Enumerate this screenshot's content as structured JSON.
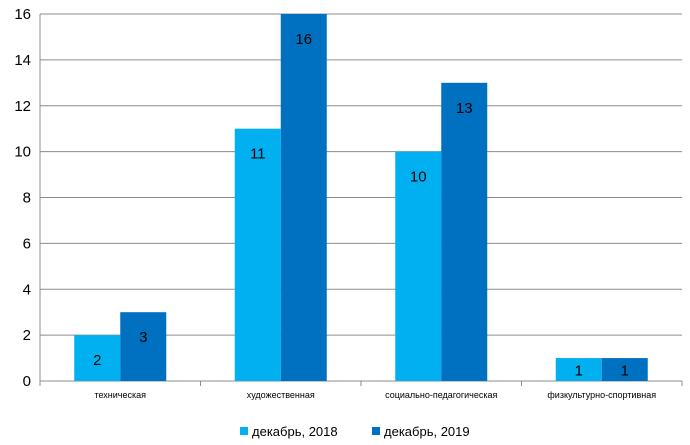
{
  "chart_data": {
    "type": "bar",
    "title": "",
    "xlabel": "",
    "ylabel": "",
    "categories": [
      "техническая",
      "художественная",
      "социально-педагогическая",
      "физкультурно-спортивная"
    ],
    "series": [
      {
        "name": "декабрь, 2018",
        "values": [
          2,
          11,
          10,
          1
        ],
        "color": "#00b0f0"
      },
      {
        "name": "декабрь, 2019",
        "values": [
          3,
          16,
          13,
          1
        ],
        "color": "#0070c0"
      }
    ],
    "ylim": [
      0,
      16
    ],
    "yticks": [
      0,
      2,
      4,
      6,
      8,
      10,
      12,
      14,
      16
    ],
    "grid": true,
    "legend_position": "bottom",
    "data_labels": true
  }
}
